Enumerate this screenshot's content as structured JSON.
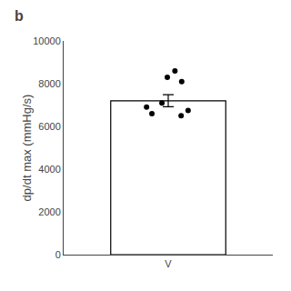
{
  "chart_data": {
    "type": "bar",
    "title": "b",
    "categories": [
      "V"
    ],
    "values": [
      7200
    ],
    "errors": [
      280
    ],
    "color": "#ffffff",
    "points": [
      8600,
      8300,
      8100,
      7100,
      6900,
      6750,
      6600,
      6500
    ],
    "ylabel": "dp/dt max (mmHg/s)",
    "ylim": [
      0,
      10000
    ],
    "yticks": [
      0,
      2000,
      4000,
      6000,
      8000,
      10000
    ],
    "grid": false
  }
}
